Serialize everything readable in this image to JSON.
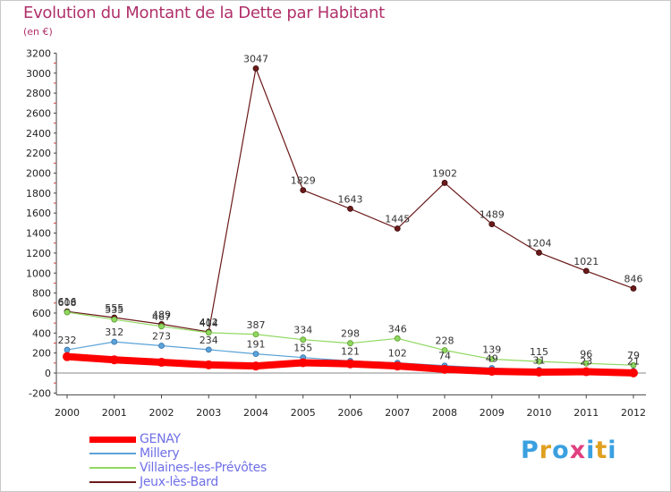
{
  "title": "Evolution du Montant de la Dette par Habitant",
  "subtitle": "(en €)",
  "logo": {
    "text": "Proxiti",
    "letters": [
      "P",
      "r",
      "o",
      "x",
      "i",
      "t",
      "i"
    ],
    "colors": [
      "#3aa0e0",
      "#e0a020",
      "#3aa0e0",
      "#e04080",
      "#3aa0e0",
      "#e0a020",
      "#3aa0e0"
    ]
  },
  "chart_data": {
    "type": "line",
    "x": [
      "2000",
      "2001",
      "2002",
      "2003",
      "2004",
      "2005",
      "2006",
      "2007",
      "2008",
      "2009",
      "2010",
      "2011",
      "2012"
    ],
    "ylim": [
      -200,
      3200
    ],
    "yticks": [
      -200,
      0,
      200,
      400,
      600,
      800,
      1000,
      1200,
      1400,
      1600,
      1800,
      2000,
      2200,
      2400,
      2600,
      2800,
      3000,
      3200
    ],
    "grid": false,
    "legend": "bottom-left",
    "series": [
      {
        "name": "GENAY",
        "color": "#ff0000",
        "values": [
          164,
          132,
          107,
          82,
          70,
          103,
          92,
          70,
          37,
          17,
          9,
          13,
          1
        ],
        "labels": [
          "164",
          "132",
          "107",
          "82",
          "70",
          "103",
          "92",
          "70",
          "37",
          "17",
          "9",
          "13",
          "1"
        ],
        "show_labels": false
      },
      {
        "name": "Millery",
        "color": "#5ba3d9",
        "values": [
          232,
          312,
          273,
          234,
          191,
          155,
          121,
          102,
          74,
          49,
          31,
          23,
          21
        ],
        "labels": [
          "232",
          "312",
          "273",
          "234",
          "191",
          "155",
          "121",
          "102",
          "74",
          "49",
          "31",
          "23",
          "21"
        ],
        "show_labels": true
      },
      {
        "name": "Villaines-les-Prévôtes",
        "color": "#90d860",
        "values": [
          608,
          535,
          467,
          404,
          387,
          334,
          298,
          346,
          228,
          139,
          115,
          96,
          79
        ],
        "labels": [
          "608",
          "535",
          "467",
          "404",
          "387",
          "334",
          "298",
          "346",
          "228",
          "139",
          "115",
          "96",
          "79"
        ],
        "show_labels": true
      },
      {
        "name": "Jeux-lès-Bard",
        "color": "#6b1a1a",
        "values": [
          616,
          555,
          489,
          412,
          3047,
          1829,
          1643,
          1445,
          1902,
          1489,
          1204,
          1021,
          846
        ],
        "labels": [
          "616",
          "555",
          "489",
          "412",
          "3047",
          "1829",
          "1643",
          "1445",
          "1902",
          "1489",
          "1204",
          "1021",
          "846"
        ],
        "show_labels": true
      }
    ]
  }
}
